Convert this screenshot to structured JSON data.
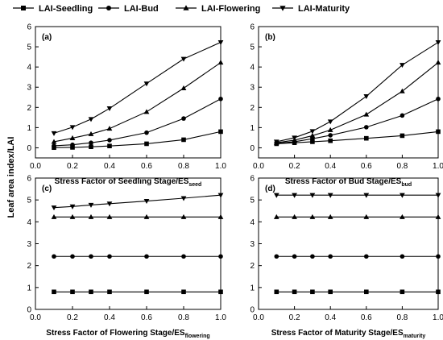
{
  "legend": [
    {
      "name": "LAI-Seedling",
      "marker": "square"
    },
    {
      "name": "LAI-Bud",
      "marker": "circle"
    },
    {
      "name": "LAI-Flowering",
      "marker": "triangle-up"
    },
    {
      "name": "LAI-Maturity",
      "marker": "triangle-down"
    }
  ],
  "ylabel": "Leaf area index/LAI",
  "chart_data": [
    {
      "type": "line",
      "panel_label": "(a)",
      "xlabel": "Stress Factor of Seedling Stage/ES",
      "xlabel_sub": "seed",
      "xlim": [
        0.0,
        1.0
      ],
      "ylim": [
        -0.5,
        6
      ],
      "xticks": [
        "0.0",
        "0.2",
        "0.4",
        "0.6",
        "0.8",
        "1.0"
      ],
      "yticks": [
        "0",
        "1",
        "2",
        "3",
        "4",
        "5",
        "6"
      ],
      "x": [
        0.1,
        0.2,
        0.3,
        0.4,
        0.6,
        0.8,
        1.0
      ],
      "series": [
        {
          "name": "LAI-Seedling",
          "values": [
            0.01,
            0.02,
            0.05,
            0.09,
            0.2,
            0.4,
            0.8
          ]
        },
        {
          "name": "LAI-Bud",
          "values": [
            0.1,
            0.15,
            0.25,
            0.38,
            0.75,
            1.45,
            2.42
          ]
        },
        {
          "name": "LAI-Flowering",
          "values": [
            0.3,
            0.48,
            0.68,
            0.95,
            1.78,
            2.95,
            4.22
          ]
        },
        {
          "name": "LAI-Maturity",
          "values": [
            0.72,
            1.02,
            1.42,
            1.95,
            3.18,
            4.4,
            5.22
          ]
        }
      ]
    },
    {
      "type": "line",
      "panel_label": "(b)",
      "xlabel": "Stress Factor of Bud Stage/ES",
      "xlabel_sub": "bud",
      "xlim": [
        0.0,
        1.0
      ],
      "ylim": [
        -0.5,
        6
      ],
      "xticks": [
        "0.0",
        "0.2",
        "0.4",
        "0.6",
        "0.8",
        "1.0"
      ],
      "yticks": [
        "0",
        "1",
        "2",
        "3",
        "4",
        "5",
        "6"
      ],
      "x": [
        0.1,
        0.2,
        0.3,
        0.4,
        0.6,
        0.8,
        1.0
      ],
      "series": [
        {
          "name": "LAI-Seedling",
          "values": [
            0.2,
            0.25,
            0.3,
            0.35,
            0.47,
            0.6,
            0.8
          ]
        },
        {
          "name": "LAI-Bud",
          "values": [
            0.22,
            0.3,
            0.45,
            0.62,
            1.02,
            1.6,
            2.42
          ]
        },
        {
          "name": "LAI-Flowering",
          "values": [
            0.25,
            0.38,
            0.6,
            0.88,
            1.65,
            2.8,
            4.22
          ]
        },
        {
          "name": "LAI-Maturity",
          "values": [
            0.3,
            0.5,
            0.82,
            1.3,
            2.55,
            4.1,
            5.22
          ]
        }
      ]
    },
    {
      "type": "line",
      "panel_label": "(c)",
      "xlabel": "Stress Factor of Flowering Stage/ES",
      "xlabel_sub": "flowering",
      "xlim": [
        0.0,
        1.0
      ],
      "ylim": [
        0,
        6
      ],
      "xticks": [
        "0.0",
        "0.2",
        "0.4",
        "0.6",
        "0.8",
        "1.0"
      ],
      "yticks": [
        "0",
        "1",
        "2",
        "3",
        "4",
        "5",
        "6"
      ],
      "x": [
        0.1,
        0.2,
        0.3,
        0.4,
        0.6,
        0.8,
        1.0
      ],
      "series": [
        {
          "name": "LAI-Seedling",
          "values": [
            0.8,
            0.8,
            0.8,
            0.8,
            0.8,
            0.8,
            0.8
          ]
        },
        {
          "name": "LAI-Bud",
          "values": [
            2.42,
            2.42,
            2.42,
            2.42,
            2.42,
            2.42,
            2.42
          ]
        },
        {
          "name": "LAI-Flowering",
          "values": [
            4.22,
            4.22,
            4.22,
            4.22,
            4.22,
            4.22,
            4.22
          ]
        },
        {
          "name": "LAI-Maturity",
          "values": [
            4.65,
            4.7,
            4.77,
            4.83,
            4.95,
            5.08,
            5.22
          ]
        }
      ]
    },
    {
      "type": "line",
      "panel_label": "(d)",
      "xlabel": "Stress Factor of Maturity Stage/ES",
      "xlabel_sub": "maturity",
      "xlim": [
        0.0,
        1.0
      ],
      "ylim": [
        0,
        6
      ],
      "xticks": [
        "0.0",
        "0.2",
        "0.4",
        "0.6",
        "0.8",
        "1.0"
      ],
      "yticks": [
        "0",
        "1",
        "2",
        "3",
        "4",
        "5",
        "6"
      ],
      "x": [
        0.1,
        0.2,
        0.3,
        0.4,
        0.6,
        0.8,
        1.0
      ],
      "series": [
        {
          "name": "LAI-Seedling",
          "values": [
            0.8,
            0.8,
            0.8,
            0.8,
            0.8,
            0.8,
            0.8
          ]
        },
        {
          "name": "LAI-Bud",
          "values": [
            2.42,
            2.42,
            2.42,
            2.42,
            2.42,
            2.42,
            2.42
          ]
        },
        {
          "name": "LAI-Flowering",
          "values": [
            4.22,
            4.22,
            4.22,
            4.22,
            4.22,
            4.22,
            4.22
          ]
        },
        {
          "name": "LAI-Maturity",
          "values": [
            5.22,
            5.22,
            5.22,
            5.22,
            5.22,
            5.22,
            5.22
          ]
        }
      ]
    }
  ]
}
